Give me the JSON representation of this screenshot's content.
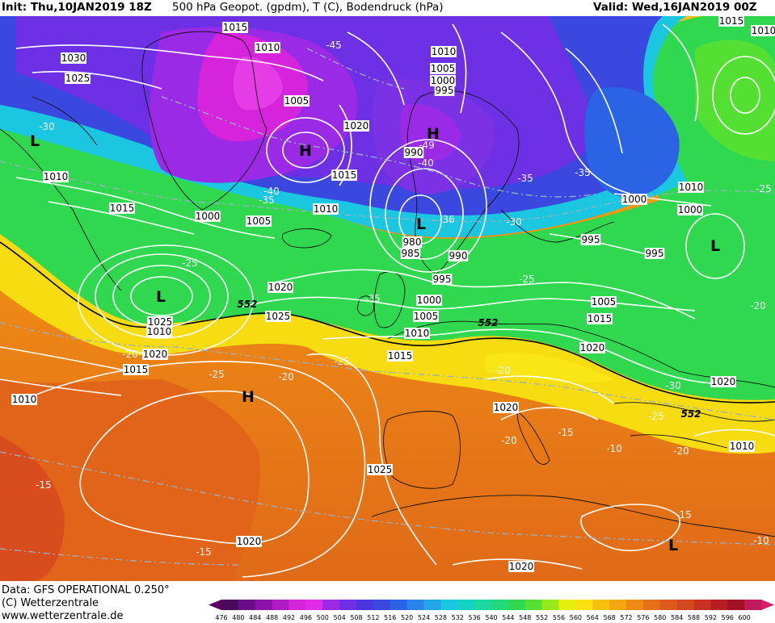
{
  "header": {
    "init": "Init: Thu,10JAN2019 18Z",
    "title": "500 hPa Geopot. (gpdm), T (C), Bodendruck (hPa)",
    "valid": "Valid: Wed,16JAN2019 00Z"
  },
  "footer": {
    "data_line": "Data: GFS OPERATIONAL 0.250°",
    "copyright": "(C) Wetterzentrale",
    "url": "www.wetterzentrale.de"
  },
  "legend": {
    "ticks": [
      "476",
      "480",
      "484",
      "488",
      "492",
      "496",
      "500",
      "504",
      "508",
      "512",
      "516",
      "520",
      "524",
      "528",
      "532",
      "536",
      "540",
      "544",
      "548",
      "552",
      "556",
      "560",
      "564",
      "568",
      "572",
      "576",
      "580",
      "584",
      "588",
      "592",
      "596",
      "600"
    ],
    "colors": [
      "#4a0a5c",
      "#6a0c86",
      "#8a12a8",
      "#b21ac6",
      "#d624dc",
      "#e02ce6",
      "#9a2ae6",
      "#6e30e4",
      "#4a36de",
      "#3a48e0",
      "#2a64e4",
      "#2a84e8",
      "#22a6e8",
      "#1ac6e0",
      "#16d0c4",
      "#1ad8a0",
      "#22d87a",
      "#30d850",
      "#54e032",
      "#98e81c",
      "#e6ee0e",
      "#fae010",
      "#f6c20e",
      "#f2a610",
      "#ee8a14",
      "#e67018",
      "#de5a1c",
      "#d44820",
      "#c83222",
      "#b61e24",
      "#a01224",
      "#c01a5a"
    ]
  },
  "map": {
    "pressure_centers": [
      {
        "label": "L",
        "name": "low-iceland-west"
      },
      {
        "label": "H",
        "name": "high-greenland"
      },
      {
        "label": "H",
        "name": "high-norway"
      },
      {
        "label": "L",
        "name": "low-north-sea"
      },
      {
        "label": "L",
        "name": "low-atlantic"
      },
      {
        "label": "H",
        "name": "high-azores"
      },
      {
        "label": "L",
        "name": "low-russia"
      },
      {
        "label": "L",
        "name": "low-east-med"
      }
    ],
    "isobar_labels": [
      "1015",
      "1010",
      "1030",
      "1025",
      "1005",
      "1020",
      "1010",
      "1015",
      "1015",
      "1000",
      "1005",
      "1010",
      "1010",
      "1005",
      "1000",
      "995",
      "990",
      "980",
      "985",
      "990",
      "995",
      "1000",
      "1005",
      "1010",
      "1015",
      "1020",
      "1025",
      "1000",
      "995",
      "1010",
      "1000",
      "995",
      "1005",
      "1015",
      "1020",
      "1025",
      "1010",
      "1020",
      "1015",
      "1010",
      "1020",
      "1025",
      "1020",
      "1020",
      "1010",
      "1020",
      "1015",
      "1010"
    ],
    "temperature_labels": [
      "-45",
      "-30",
      "-40",
      "-35",
      "-49",
      "-40",
      "-35",
      "-35",
      "-30",
      "-36",
      "-35",
      "-25",
      "-25",
      "-20",
      "-25",
      "-25",
      "-20",
      "-20",
      "-30",
      "-25",
      "-20",
      "-15",
      "-15",
      "-15",
      "-10",
      "-25",
      "-20",
      "-20",
      "-15",
      "-10"
    ],
    "height_labels": [
      "552",
      "552",
      "552"
    ]
  }
}
